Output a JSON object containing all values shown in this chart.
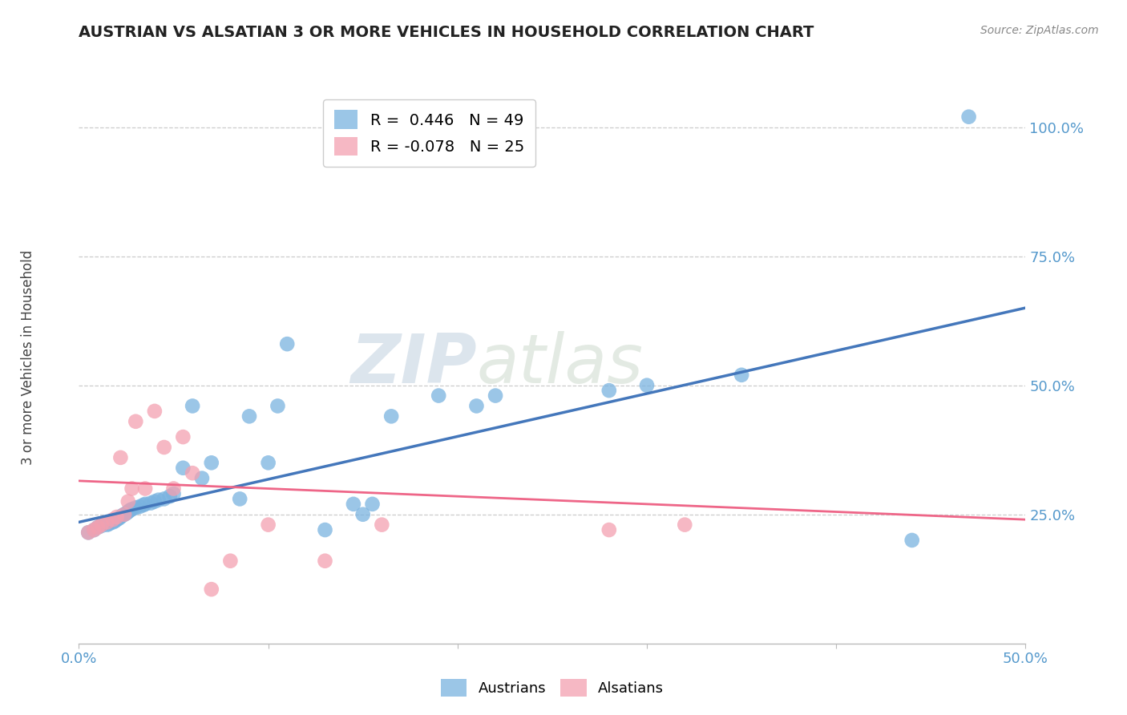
{
  "title": "AUSTRIAN VS ALSATIAN 3 OR MORE VEHICLES IN HOUSEHOLD CORRELATION CHART",
  "source": "Source: ZipAtlas.com",
  "ylabel": "3 or more Vehicles in Household",
  "watermark_zip": "ZIP",
  "watermark_atlas": "atlas",
  "xlim": [
    0.0,
    0.5
  ],
  "ylim": [
    0.0,
    1.08
  ],
  "xticks": [
    0.0,
    0.1,
    0.2,
    0.3,
    0.4,
    0.5
  ],
  "xtick_labels": [
    "0.0%",
    "",
    "",
    "",
    "",
    "50.0%"
  ],
  "ytick_labels": [
    "25.0%",
    "50.0%",
    "75.0%",
    "100.0%"
  ],
  "ytick_values": [
    0.25,
    0.5,
    0.75,
    1.0
  ],
  "grid_color": "#cccccc",
  "background_color": "#ffffff",
  "austrians_color": "#7ab3e0",
  "alsatians_color": "#f4a0b0",
  "austrians_line_color": "#4477bb",
  "alsatians_line_color": "#ee6688",
  "legend_r_n": [
    {
      "r": " 0.446",
      "n": "49"
    },
    {
      "r": "-0.078",
      "n": "25"
    }
  ],
  "austrians_x": [
    0.005,
    0.008,
    0.01,
    0.012,
    0.015,
    0.016,
    0.018,
    0.019,
    0.02,
    0.021,
    0.022,
    0.023,
    0.024,
    0.025,
    0.026,
    0.027,
    0.028,
    0.03,
    0.032,
    0.034,
    0.035,
    0.038,
    0.04,
    0.042,
    0.045,
    0.048,
    0.05,
    0.055,
    0.06,
    0.065,
    0.07,
    0.085,
    0.09,
    0.1,
    0.105,
    0.11,
    0.13,
    0.145,
    0.15,
    0.155,
    0.165,
    0.19,
    0.21,
    0.22,
    0.28,
    0.3,
    0.35,
    0.44,
    0.47
  ],
  "austrians_y": [
    0.215,
    0.22,
    0.225,
    0.228,
    0.23,
    0.232,
    0.235,
    0.237,
    0.24,
    0.242,
    0.245,
    0.248,
    0.25,
    0.252,
    0.255,
    0.258,
    0.26,
    0.263,
    0.265,
    0.268,
    0.27,
    0.272,
    0.275,
    0.278,
    0.28,
    0.285,
    0.29,
    0.34,
    0.46,
    0.32,
    0.35,
    0.28,
    0.44,
    0.35,
    0.46,
    0.58,
    0.22,
    0.27,
    0.25,
    0.27,
    0.44,
    0.48,
    0.46,
    0.48,
    0.49,
    0.5,
    0.52,
    0.2,
    1.02
  ],
  "alsatians_x": [
    0.005,
    0.008,
    0.01,
    0.012,
    0.015,
    0.018,
    0.02,
    0.022,
    0.024,
    0.026,
    0.028,
    0.03,
    0.035,
    0.04,
    0.045,
    0.05,
    0.055,
    0.06,
    0.07,
    0.08,
    0.1,
    0.13,
    0.16,
    0.28,
    0.32
  ],
  "alsatians_y": [
    0.215,
    0.22,
    0.225,
    0.23,
    0.235,
    0.24,
    0.245,
    0.36,
    0.25,
    0.275,
    0.3,
    0.43,
    0.3,
    0.45,
    0.38,
    0.3,
    0.4,
    0.33,
    0.105,
    0.16,
    0.23,
    0.16,
    0.23,
    0.22,
    0.23
  ],
  "austrians_trend_x": [
    0.0,
    0.5
  ],
  "austrians_trend_y": [
    0.235,
    0.65
  ],
  "alsatians_trend_x": [
    0.0,
    0.5
  ],
  "alsatians_trend_y": [
    0.315,
    0.24
  ]
}
